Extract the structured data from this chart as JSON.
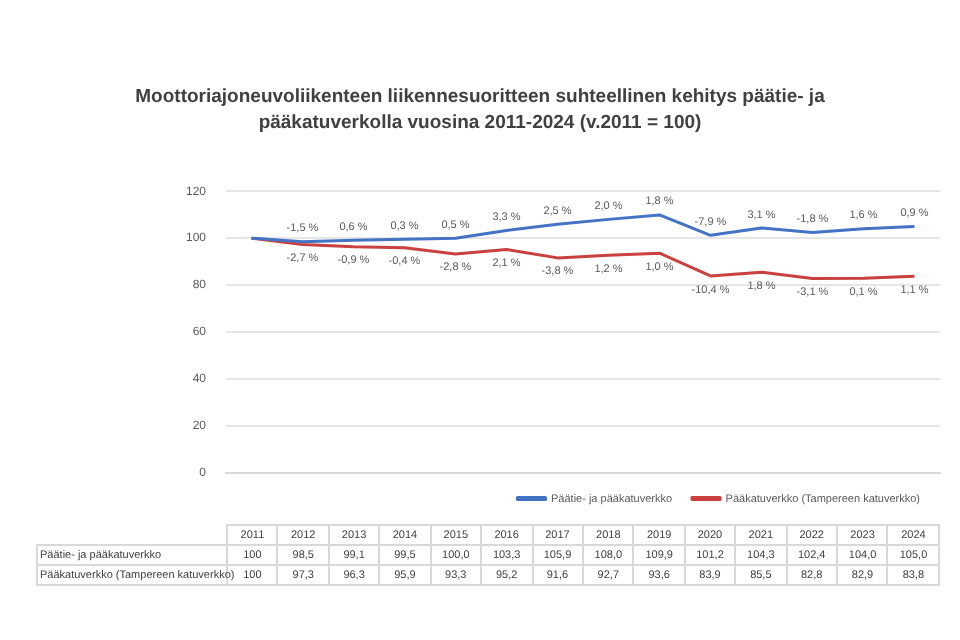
{
  "chart_data": {
    "type": "line",
    "title": "Moottoriajoneuvoliikenteen liikennesuoritteen suhteellinen kehitys päätie- ja pääkatuverkolla vuosina 2011-2024 (v.2011 = 100)",
    "categories": [
      "2011",
      "2012",
      "2013",
      "2014",
      "2015",
      "2016",
      "2017",
      "2018",
      "2019",
      "2020",
      "2021",
      "2022",
      "2023",
      "2024"
    ],
    "series": [
      {
        "name": "Päätie- ja pääkatuverkko",
        "color": "#4472c4",
        "values": [
          100,
          98.5,
          99.1,
          99.5,
          100.0,
          103.3,
          105.9,
          108.0,
          109.9,
          101.2,
          104.3,
          102.4,
          104.0,
          105.0
        ],
        "value_labels": [
          "100",
          "98,5",
          "99,1",
          "99,5",
          "100,0",
          "103,3",
          "105,9",
          "108,0",
          "109,9",
          "101,2",
          "104,3",
          "102,4",
          "104,0",
          "105,0"
        ]
      },
      {
        "name": "Pääkatuverkko (Tampereen katuverkko)",
        "color": "#c9403f",
        "values": [
          100,
          97.3,
          96.3,
          95.9,
          93.3,
          95.2,
          91.6,
          92.7,
          93.6,
          83.9,
          85.5,
          82.8,
          82.9,
          83.8
        ],
        "value_labels": [
          "100",
          "97,3",
          "96,3",
          "95,9",
          "93,3",
          "95,2",
          "91,6",
          "92,7",
          "93,6",
          "83,9",
          "85,5",
          "82,8",
          "82,9",
          "83,8"
        ]
      }
    ],
    "annotations": [
      {
        "text": "-1,5 %",
        "x": "2012",
        "y": 98.5
      },
      {
        "text": "0,6 %",
        "x": "2013",
        "y": 99.1
      },
      {
        "text": "0,3 %",
        "x": "2014",
        "y": 99.5
      },
      {
        "text": "0,5 %",
        "x": "2015",
        "y": 100.0
      },
      {
        "text": "3,3 %",
        "x": "2016",
        "y": 103.3
      },
      {
        "text": "2,5 %",
        "x": "2017",
        "y": 105.9
      },
      {
        "text": "2,0 %",
        "x": "2018",
        "y": 108.0
      },
      {
        "text": "1,8 %",
        "x": "2019",
        "y": 109.9
      },
      {
        "text": "-7,9 %",
        "x": "2020",
        "y": 101.2
      },
      {
        "text": "3,1 %",
        "x": "2021",
        "y": 104.3
      },
      {
        "text": "-1,8 %",
        "x": "2022",
        "y": 102.4
      },
      {
        "text": "1,6 %",
        "x": "2023",
        "y": 104.0
      },
      {
        "text": "0,9 %",
        "x": "2024",
        "y": 105.0
      },
      {
        "text": "-2,7 %",
        "x": "2012",
        "y": 97.3
      },
      {
        "text": "-0,9 %",
        "x": "2013",
        "y": 96.3
      },
      {
        "text": "-0,4 %",
        "x": "2014",
        "y": 95.9
      },
      {
        "text": "-2,8 %",
        "x": "2015",
        "y": 93.3
      },
      {
        "text": "2,1 %",
        "x": "2016",
        "y": 95.2
      },
      {
        "text": "-3,8 %",
        "x": "2017",
        "y": 91.6
      },
      {
        "text": "1,2 %",
        "x": "2018",
        "y": 92.7
      },
      {
        "text": "1,0 %",
        "x": "2019",
        "y": 93.6
      },
      {
        "text": "-10,4 %",
        "x": "2020",
        "y": 83.9
      },
      {
        "text": "1,8 %",
        "x": "2021",
        "y": 85.5
      },
      {
        "text": "-3,1 %",
        "x": "2022",
        "y": 82.8
      },
      {
        "text": "0,1 %",
        "x": "2023",
        "y": 82.9
      },
      {
        "text": "1,1 %",
        "x": "2024",
        "y": 83.8
      }
    ],
    "ylim": [
      0,
      120
    ],
    "yticks": [
      0,
      20,
      40,
      60,
      80,
      100,
      120
    ],
    "grid": "y",
    "legend": "bottom right",
    "tick_labels": "y",
    "marker": "none",
    "line_style": "solid"
  }
}
